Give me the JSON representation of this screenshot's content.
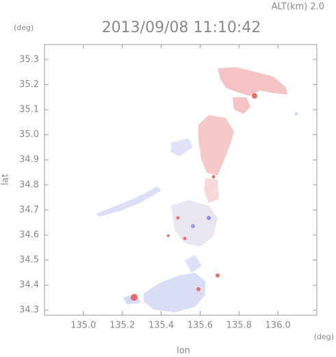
{
  "chart_data": {
    "type": "map",
    "title": "2013/09/08 11:10:42",
    "subtitle": "ALT(km) 2.0",
    "y_unit": "(deg)",
    "x_unit": "(deg)",
    "xlabel": "lon",
    "ylabel": "lat",
    "xlim": [
      134.8,
      136.2
    ],
    "xticks": [
      {
        "value": 135.0,
        "label": "135.0"
      },
      135.2,
      135.4,
      135.6,
      135.8,
      {
        "value": 136.0,
        "label": "136.0"
      }
    ],
    "ylim": [
      34.28,
      35.36
    ],
    "yticks": [
      34.3,
      34.4,
      34.5,
      34.6,
      34.7,
      34.8,
      34.9,
      {
        "value": 35.0,
        "label": "35.0"
      },
      35.1,
      35.2,
      35.3
    ]
  }
}
